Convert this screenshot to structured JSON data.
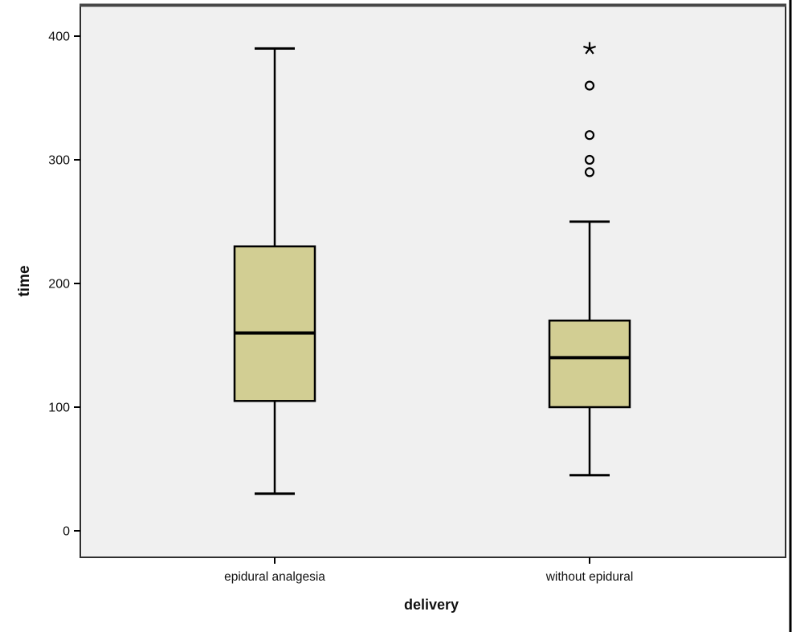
{
  "chart_data": {
    "type": "boxplot",
    "title": "",
    "xlabel": "delivery",
    "ylabel": "time",
    "categories": [
      "epidural analgesia",
      "without epidural"
    ],
    "yticks": [
      "0",
      "100",
      "200",
      "300",
      "400"
    ],
    "ylim": [
      -21,
      425
    ],
    "grid": false,
    "legend": "none",
    "colors": {
      "box_fill": "#d2ce93",
      "box_stroke": "#000000",
      "plot_bg": "#f0f0f0",
      "frame": "#2f2f2f",
      "frame_top": "#474747",
      "outer_border": "#000000"
    },
    "series": [
      {
        "category": "epidural analgesia",
        "whisker_low": 30,
        "q1": 105,
        "median": 160,
        "q3": 230,
        "whisker_high": 390,
        "outliers": [],
        "extremes": []
      },
      {
        "category": "without epidural",
        "whisker_low": 45,
        "q1": 100,
        "median": 140,
        "q3": 170,
        "whisker_high": 250,
        "outliers": [
          290,
          300,
          320,
          360
        ],
        "extremes": [
          390
        ]
      }
    ]
  }
}
